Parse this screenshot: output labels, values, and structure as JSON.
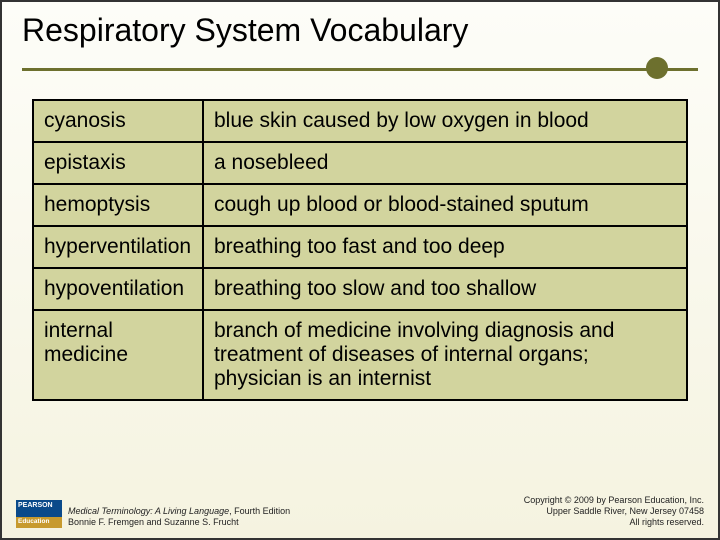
{
  "slide": {
    "title": "Respiratory System Vocabulary",
    "accent_color": "#6d702e",
    "table_bg": "#d2d49e"
  },
  "table": {
    "rows": [
      {
        "term": "cyanosis",
        "definition": "blue skin caused by low oxygen in blood"
      },
      {
        "term": "epistaxis",
        "definition": "a nosebleed"
      },
      {
        "term": "hemoptysis",
        "definition": "cough up blood or blood-stained sputum"
      },
      {
        "term": "hyperventilation",
        "definition": "breathing too fast and too deep"
      },
      {
        "term": "hypoventilation",
        "definition": "breathing too slow and too shallow"
      },
      {
        "term": "internal medicine",
        "definition": "branch of medicine involving diagnosis and treatment of diseases of internal organs; physician is an internist"
      }
    ]
  },
  "footer": {
    "logo_top": "PEARSON",
    "logo_bottom": "Education",
    "book_title": "Medical Terminology: A Living Language",
    "edition": ", Fourth Edition",
    "authors": "Bonnie F. Fremgen and Suzanne S. Frucht",
    "copyright_line1": "Copyright © 2009 by Pearson Education, Inc.",
    "copyright_line2": "Upper Saddle River, New Jersey 07458",
    "copyright_line3": "All rights reserved."
  }
}
